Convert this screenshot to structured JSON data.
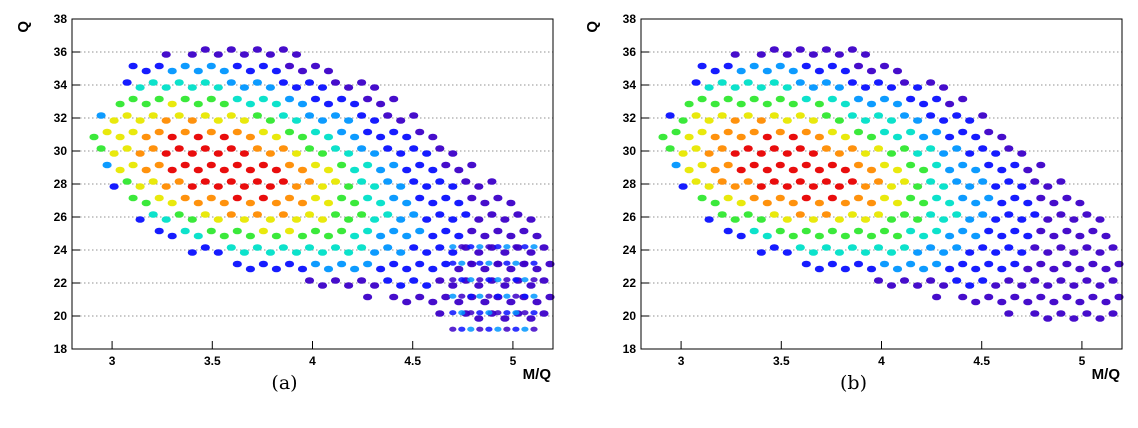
{
  "chart_data": [
    {
      "type": "heatmap",
      "caption": "(a)",
      "xlabel": "M/Q",
      "ylabel": "Q",
      "xlim": [
        2.8,
        5.2
      ],
      "ylim": [
        18,
        38
      ],
      "x_ticks": [
        "3",
        "3.5",
        "4",
        "4.5",
        "5"
      ],
      "y_ticks": [
        "18",
        "20",
        "22",
        "24",
        "26",
        "28",
        "30",
        "32",
        "34",
        "36",
        "38"
      ],
      "grid": "horizontal dotted",
      "colormap": [
        "#3c00c8",
        "#0a10ff",
        "#0096ff",
        "#00e0c8",
        "#30e830",
        "#e8e800",
        "#ff8c00",
        "#e80000"
      ],
      "peak": {
        "x": 3.55,
        "y": 29.0
      },
      "q_range": [
        19,
        37
      ],
      "slope": -6.0,
      "tail": true
    },
    {
      "type": "heatmap",
      "caption": "(b)",
      "xlabel": "M/Q",
      "ylabel": "Q",
      "xlim": [
        2.8,
        5.2
      ],
      "ylim": [
        18,
        38
      ],
      "x_ticks": [
        "3",
        "3.5",
        "4",
        "4.5",
        "5"
      ],
      "y_ticks": [
        "18",
        "20",
        "22",
        "24",
        "26",
        "28",
        "30",
        "32",
        "34",
        "36",
        "38"
      ],
      "grid": "horizontal dotted",
      "colormap": [
        "#3c00c8",
        "#0a10ff",
        "#0096ff",
        "#00e0c8",
        "#30e830",
        "#e8e800",
        "#ff8c00",
        "#e80000"
      ],
      "peak": {
        "x": 3.55,
        "y": 29.0
      },
      "q_range": [
        19,
        37
      ],
      "slope": -5.0,
      "tail": false
    }
  ]
}
